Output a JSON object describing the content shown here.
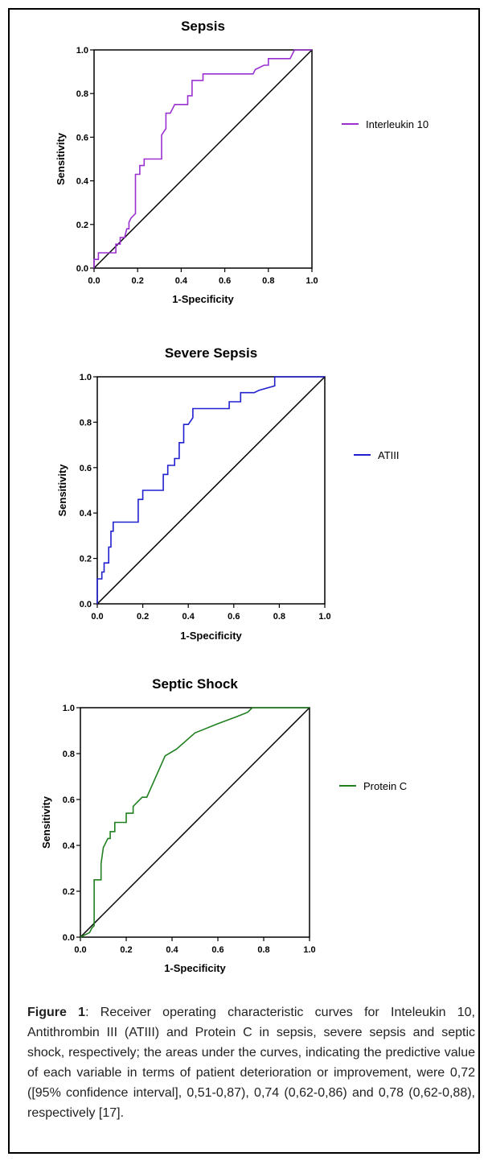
{
  "chart_data": [
    {
      "type": "line",
      "title": "Sepsis",
      "xlabel": "1-Specificity",
      "ylabel": "Sensitivity",
      "xlim": [
        0,
        1
      ],
      "ylim": [
        0,
        1
      ],
      "xticks": [
        "0.0",
        "0.2",
        "0.4",
        "0.6",
        "0.8",
        "1.0"
      ],
      "yticks": [
        "0.0",
        "0.2",
        "0.4",
        "0.6",
        "0.8",
        "1.0"
      ],
      "legend": "right",
      "reference_line": [
        [
          0,
          0
        ],
        [
          1,
          1
        ]
      ],
      "series": [
        {
          "name": "Interleukin 10",
          "color": "#9b30d0",
          "x": [
            0,
            0,
            0.02,
            0.02,
            0.1,
            0.1,
            0.12,
            0.12,
            0.14,
            0.15,
            0.16,
            0.16,
            0.17,
            0.19,
            0.19,
            0.21,
            0.21,
            0.23,
            0.23,
            0.31,
            0.31,
            0.33,
            0.33,
            0.35,
            0.37,
            0.37,
            0.43,
            0.43,
            0.45,
            0.45,
            0.5,
            0.5,
            0.73,
            0.74,
            0.78,
            0.8,
            0.8,
            0.9,
            0.91,
            0.92,
            1.0
          ],
          "y": [
            0,
            0.04,
            0.04,
            0.07,
            0.07,
            0.11,
            0.11,
            0.14,
            0.14,
            0.18,
            0.18,
            0.21,
            0.23,
            0.25,
            0.43,
            0.43,
            0.47,
            0.47,
            0.5,
            0.5,
            0.61,
            0.64,
            0.71,
            0.71,
            0.75,
            0.75,
            0.75,
            0.79,
            0.79,
            0.86,
            0.86,
            0.89,
            0.89,
            0.91,
            0.93,
            0.93,
            0.96,
            0.96,
            0.98,
            1.0,
            1.0
          ]
        }
      ]
    },
    {
      "type": "line",
      "title": "Severe Sepsis",
      "xlabel": "1-Specificity",
      "ylabel": "Sensitivity",
      "xlim": [
        0,
        1
      ],
      "ylim": [
        0,
        1
      ],
      "xticks": [
        "0.0",
        "0.2",
        "0.4",
        "0.6",
        "0.8",
        "1.0"
      ],
      "yticks": [
        "0.0",
        "0.2",
        "0.4",
        "0.6",
        "0.8",
        "1.0"
      ],
      "legend": "right",
      "reference_line": [
        [
          0,
          0
        ],
        [
          1,
          1
        ]
      ],
      "series": [
        {
          "name": "ATIII",
          "color": "#2020d0",
          "x": [
            0,
            0,
            0.02,
            0.02,
            0.03,
            0.03,
            0.05,
            0.05,
            0.06,
            0.06,
            0.07,
            0.07,
            0.18,
            0.18,
            0.2,
            0.2,
            0.29,
            0.29,
            0.31,
            0.31,
            0.34,
            0.34,
            0.36,
            0.36,
            0.38,
            0.38,
            0.4,
            0.42,
            0.42,
            0.58,
            0.58,
            0.63,
            0.63,
            0.69,
            0.71,
            0.78,
            0.78,
            1.0
          ],
          "y": [
            0,
            0.11,
            0.11,
            0.14,
            0.14,
            0.18,
            0.18,
            0.25,
            0.25,
            0.32,
            0.32,
            0.36,
            0.36,
            0.46,
            0.46,
            0.5,
            0.5,
            0.57,
            0.57,
            0.61,
            0.61,
            0.64,
            0.64,
            0.71,
            0.71,
            0.79,
            0.79,
            0.82,
            0.86,
            0.86,
            0.89,
            0.89,
            0.93,
            0.93,
            0.94,
            0.96,
            1.0,
            1.0
          ]
        }
      ]
    },
    {
      "type": "line",
      "title": "Septic Shock",
      "xlabel": "1-Specificity",
      "ylabel": "Sensitivity",
      "xlim": [
        0,
        1
      ],
      "ylim": [
        0,
        1
      ],
      "xticks": [
        "0.0",
        "0.2",
        "0.4",
        "0.6",
        "0.8",
        "1.0"
      ],
      "yticks": [
        "0.0",
        "0.2",
        "0.4",
        "0.6",
        "0.8",
        "1.0"
      ],
      "legend": "right",
      "reference_line": [
        [
          0,
          0
        ],
        [
          1,
          1
        ]
      ],
      "series": [
        {
          "name": "Protein C",
          "color": "#208020",
          "x": [
            0,
            0.04,
            0.05,
            0.06,
            0.06,
            0.09,
            0.09,
            0.1,
            0.12,
            0.13,
            0.13,
            0.15,
            0.15,
            0.2,
            0.2,
            0.23,
            0.23,
            0.27,
            0.29,
            0.37,
            0.42,
            0.5,
            0.6,
            0.68,
            0.73,
            0.75,
            1.0
          ],
          "y": [
            0,
            0.02,
            0.04,
            0.05,
            0.25,
            0.25,
            0.32,
            0.39,
            0.43,
            0.43,
            0.46,
            0.46,
            0.5,
            0.5,
            0.54,
            0.54,
            0.57,
            0.61,
            0.61,
            0.79,
            0.82,
            0.89,
            0.93,
            0.96,
            0.98,
            1.0,
            1.0
          ]
        }
      ]
    }
  ],
  "caption": {
    "label": "Figure 1",
    "text": ": Receiver operating characteristic curves for Inteleukin 10, Antithrombin III (ATIII) and Protein C in sepsis, severe sepsis and septic shock, respectively; the areas under the curves, indicating the predictive value of each variable in terms of patient deterioration or improvement, were 0,72 ([95% confidence interval], 0,51-0,87), 0,74 (0,62-0,86) and 0,78 (0,62-0,88), respectively [17]."
  }
}
